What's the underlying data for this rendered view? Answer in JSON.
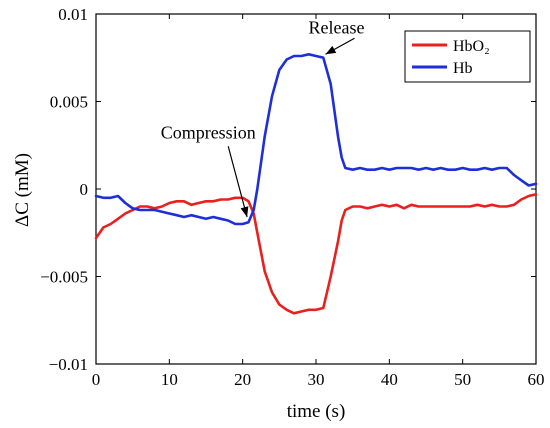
{
  "chart_data": {
    "type": "line",
    "title": "",
    "xlabel": "time (s)",
    "ylabel": "ΔC (mM)",
    "xlim": [
      0,
      60
    ],
    "ylim": [
      -0.01,
      0.01
    ],
    "xticks": [
      0,
      10,
      20,
      30,
      40,
      50,
      60
    ],
    "yticks": [
      0.01,
      0.005,
      0,
      -0.005,
      -0.01
    ],
    "xtick_labels": [
      "0",
      "10",
      "20",
      "30",
      "40",
      "50",
      "60"
    ],
    "ytick_labels": [
      "0.01",
      "0.005",
      "0",
      "−0.005",
      "−0.01"
    ],
    "grid": false,
    "legend_position": "top-right",
    "series": [
      {
        "name": "HbO₂",
        "color": "#e8201e",
        "x": [
          0,
          0.5,
          1,
          2,
          3,
          4,
          5,
          6,
          7,
          8,
          9,
          10,
          11,
          12,
          13,
          14,
          15,
          16,
          17,
          18,
          19,
          20,
          20.8,
          21.5,
          22,
          22.5,
          23,
          24,
          25,
          26,
          27,
          28,
          29,
          30,
          31,
          32,
          33,
          33.5,
          34,
          35,
          36,
          37,
          38,
          39,
          40,
          41,
          42,
          43,
          44,
          45,
          46,
          47,
          48,
          49,
          50,
          51,
          52,
          53,
          54,
          55,
          56,
          57,
          58,
          59,
          60
        ],
        "y": [
          -0.0028,
          -0.0025,
          -0.0022,
          -0.002,
          -0.0017,
          -0.0014,
          -0.0012,
          -0.001,
          -0.001,
          -0.0011,
          -0.001,
          -0.0008,
          -0.0007,
          -0.0007,
          -0.0009,
          -0.0008,
          -0.0007,
          -0.0007,
          -0.0006,
          -0.0006,
          -0.0005,
          -0.0005,
          -0.0007,
          -0.0014,
          -0.0025,
          -0.0036,
          -0.0047,
          -0.0059,
          -0.0066,
          -0.0069,
          -0.0071,
          -0.007,
          -0.0069,
          -0.0069,
          -0.0068,
          -0.005,
          -0.003,
          -0.0018,
          -0.0012,
          -0.001,
          -0.001,
          -0.0011,
          -0.001,
          -0.0009,
          -0.001,
          -0.0009,
          -0.0011,
          -0.0009,
          -0.001,
          -0.001,
          -0.001,
          -0.001,
          -0.001,
          -0.001,
          -0.001,
          -0.001,
          -0.0009,
          -0.001,
          -0.0009,
          -0.001,
          -0.001,
          -0.0009,
          -0.0006,
          -0.0004,
          -0.0003
        ]
      },
      {
        "name": "Hb",
        "color": "#1f2fd8",
        "x": [
          0,
          1,
          2,
          3,
          4,
          5,
          6,
          7,
          8,
          9,
          10,
          11,
          12,
          13,
          14,
          15,
          16,
          17,
          18,
          19,
          20,
          20.8,
          21.5,
          22,
          22.5,
          23,
          24,
          25,
          26,
          27,
          28,
          29,
          30,
          31,
          32,
          33,
          33.5,
          34,
          35,
          36,
          37,
          38,
          39,
          40,
          41,
          42,
          43,
          44,
          45,
          46,
          47,
          48,
          49,
          50,
          51,
          52,
          53,
          54,
          55,
          56,
          57,
          58,
          59,
          60
        ],
        "y": [
          -0.0004,
          -0.0005,
          -0.0005,
          -0.0004,
          -0.0008,
          -0.0011,
          -0.0012,
          -0.0012,
          -0.0012,
          -0.0013,
          -0.0014,
          -0.0015,
          -0.0016,
          -0.0015,
          -0.0016,
          -0.0017,
          -0.0016,
          -0.0017,
          -0.0018,
          -0.002,
          -0.002,
          -0.0019,
          -0.0012,
          0.0,
          0.0015,
          0.003,
          0.0053,
          0.0068,
          0.0074,
          0.0076,
          0.0076,
          0.0077,
          0.0076,
          0.0075,
          0.006,
          0.003,
          0.0018,
          0.0012,
          0.0011,
          0.0012,
          0.0011,
          0.0011,
          0.0012,
          0.0011,
          0.0012,
          0.0012,
          0.0012,
          0.0011,
          0.0012,
          0.0011,
          0.0012,
          0.0011,
          0.0011,
          0.0012,
          0.0011,
          0.0011,
          0.0012,
          0.0011,
          0.0012,
          0.0012,
          0.0008,
          0.0005,
          0.0002,
          0.0003
        ]
      }
    ],
    "annotations": [
      {
        "text": "Release",
        "text_x": 32.8,
        "text_y": 0.0089,
        "arrow_to": [
          31.3,
          0.0077
        ]
      },
      {
        "text": "Compression",
        "text_x": 15.3,
        "text_y": 0.0029,
        "arrow_to": [
          20.6,
          -0.0016
        ]
      }
    ]
  }
}
